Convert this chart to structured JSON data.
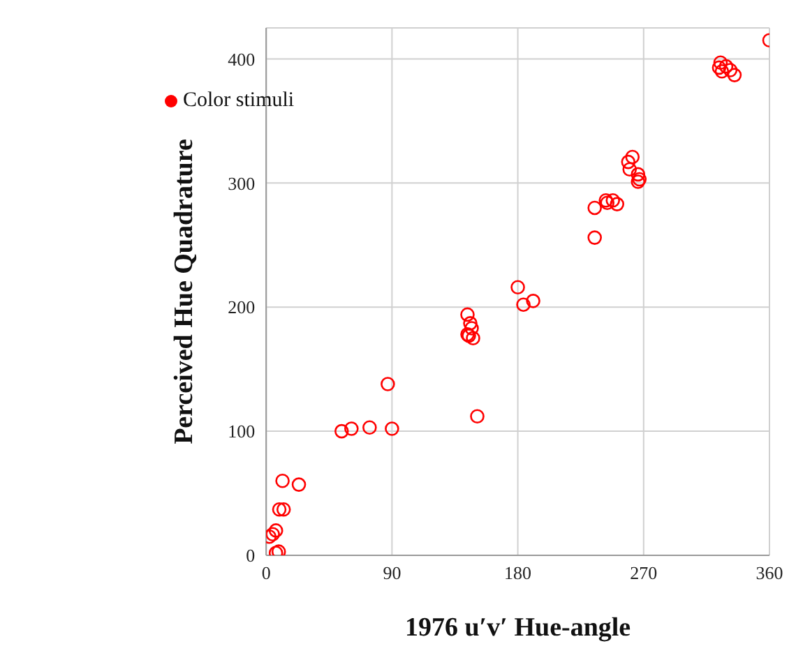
{
  "chart_data": {
    "type": "scatter",
    "xlabel": "1976 u′v′ Hue-angle",
    "ylabel": "Perceived Hue Quadrature",
    "xlim": [
      0,
      360
    ],
    "xticks": [
      0,
      90,
      180,
      270,
      360
    ],
    "ylim": [
      0,
      425
    ],
    "yticks": [
      0,
      100,
      200,
      300,
      400
    ],
    "grid": true,
    "legend": "top left",
    "marker": "circle",
    "series": [
      {
        "name": "Color stimuli",
        "color": "#ff0000",
        "x": [
          2.3,
          4.7,
          7,
          7,
          9,
          9.4,
          12.5,
          11.7,
          23.4,
          54,
          61,
          74,
          87,
          90,
          144,
          144,
          146,
          147,
          145,
          148,
          151,
          180,
          184,
          191,
          235,
          235,
          243,
          244,
          248,
          251,
          259,
          262,
          260,
          266,
          266,
          267,
          325,
          324,
          326,
          329,
          332,
          335,
          360
        ],
        "values": [
          15,
          17,
          20,
          2,
          3,
          37,
          37,
          60,
          57,
          100,
          102,
          103,
          138,
          102,
          194,
          178,
          187,
          183,
          177,
          175,
          112,
          216,
          202,
          205,
          256,
          280,
          286,
          284,
          286,
          283,
          317,
          321,
          311,
          307,
          301,
          303,
          397,
          393,
          390,
          394,
          391,
          387,
          415
        ]
      }
    ]
  }
}
